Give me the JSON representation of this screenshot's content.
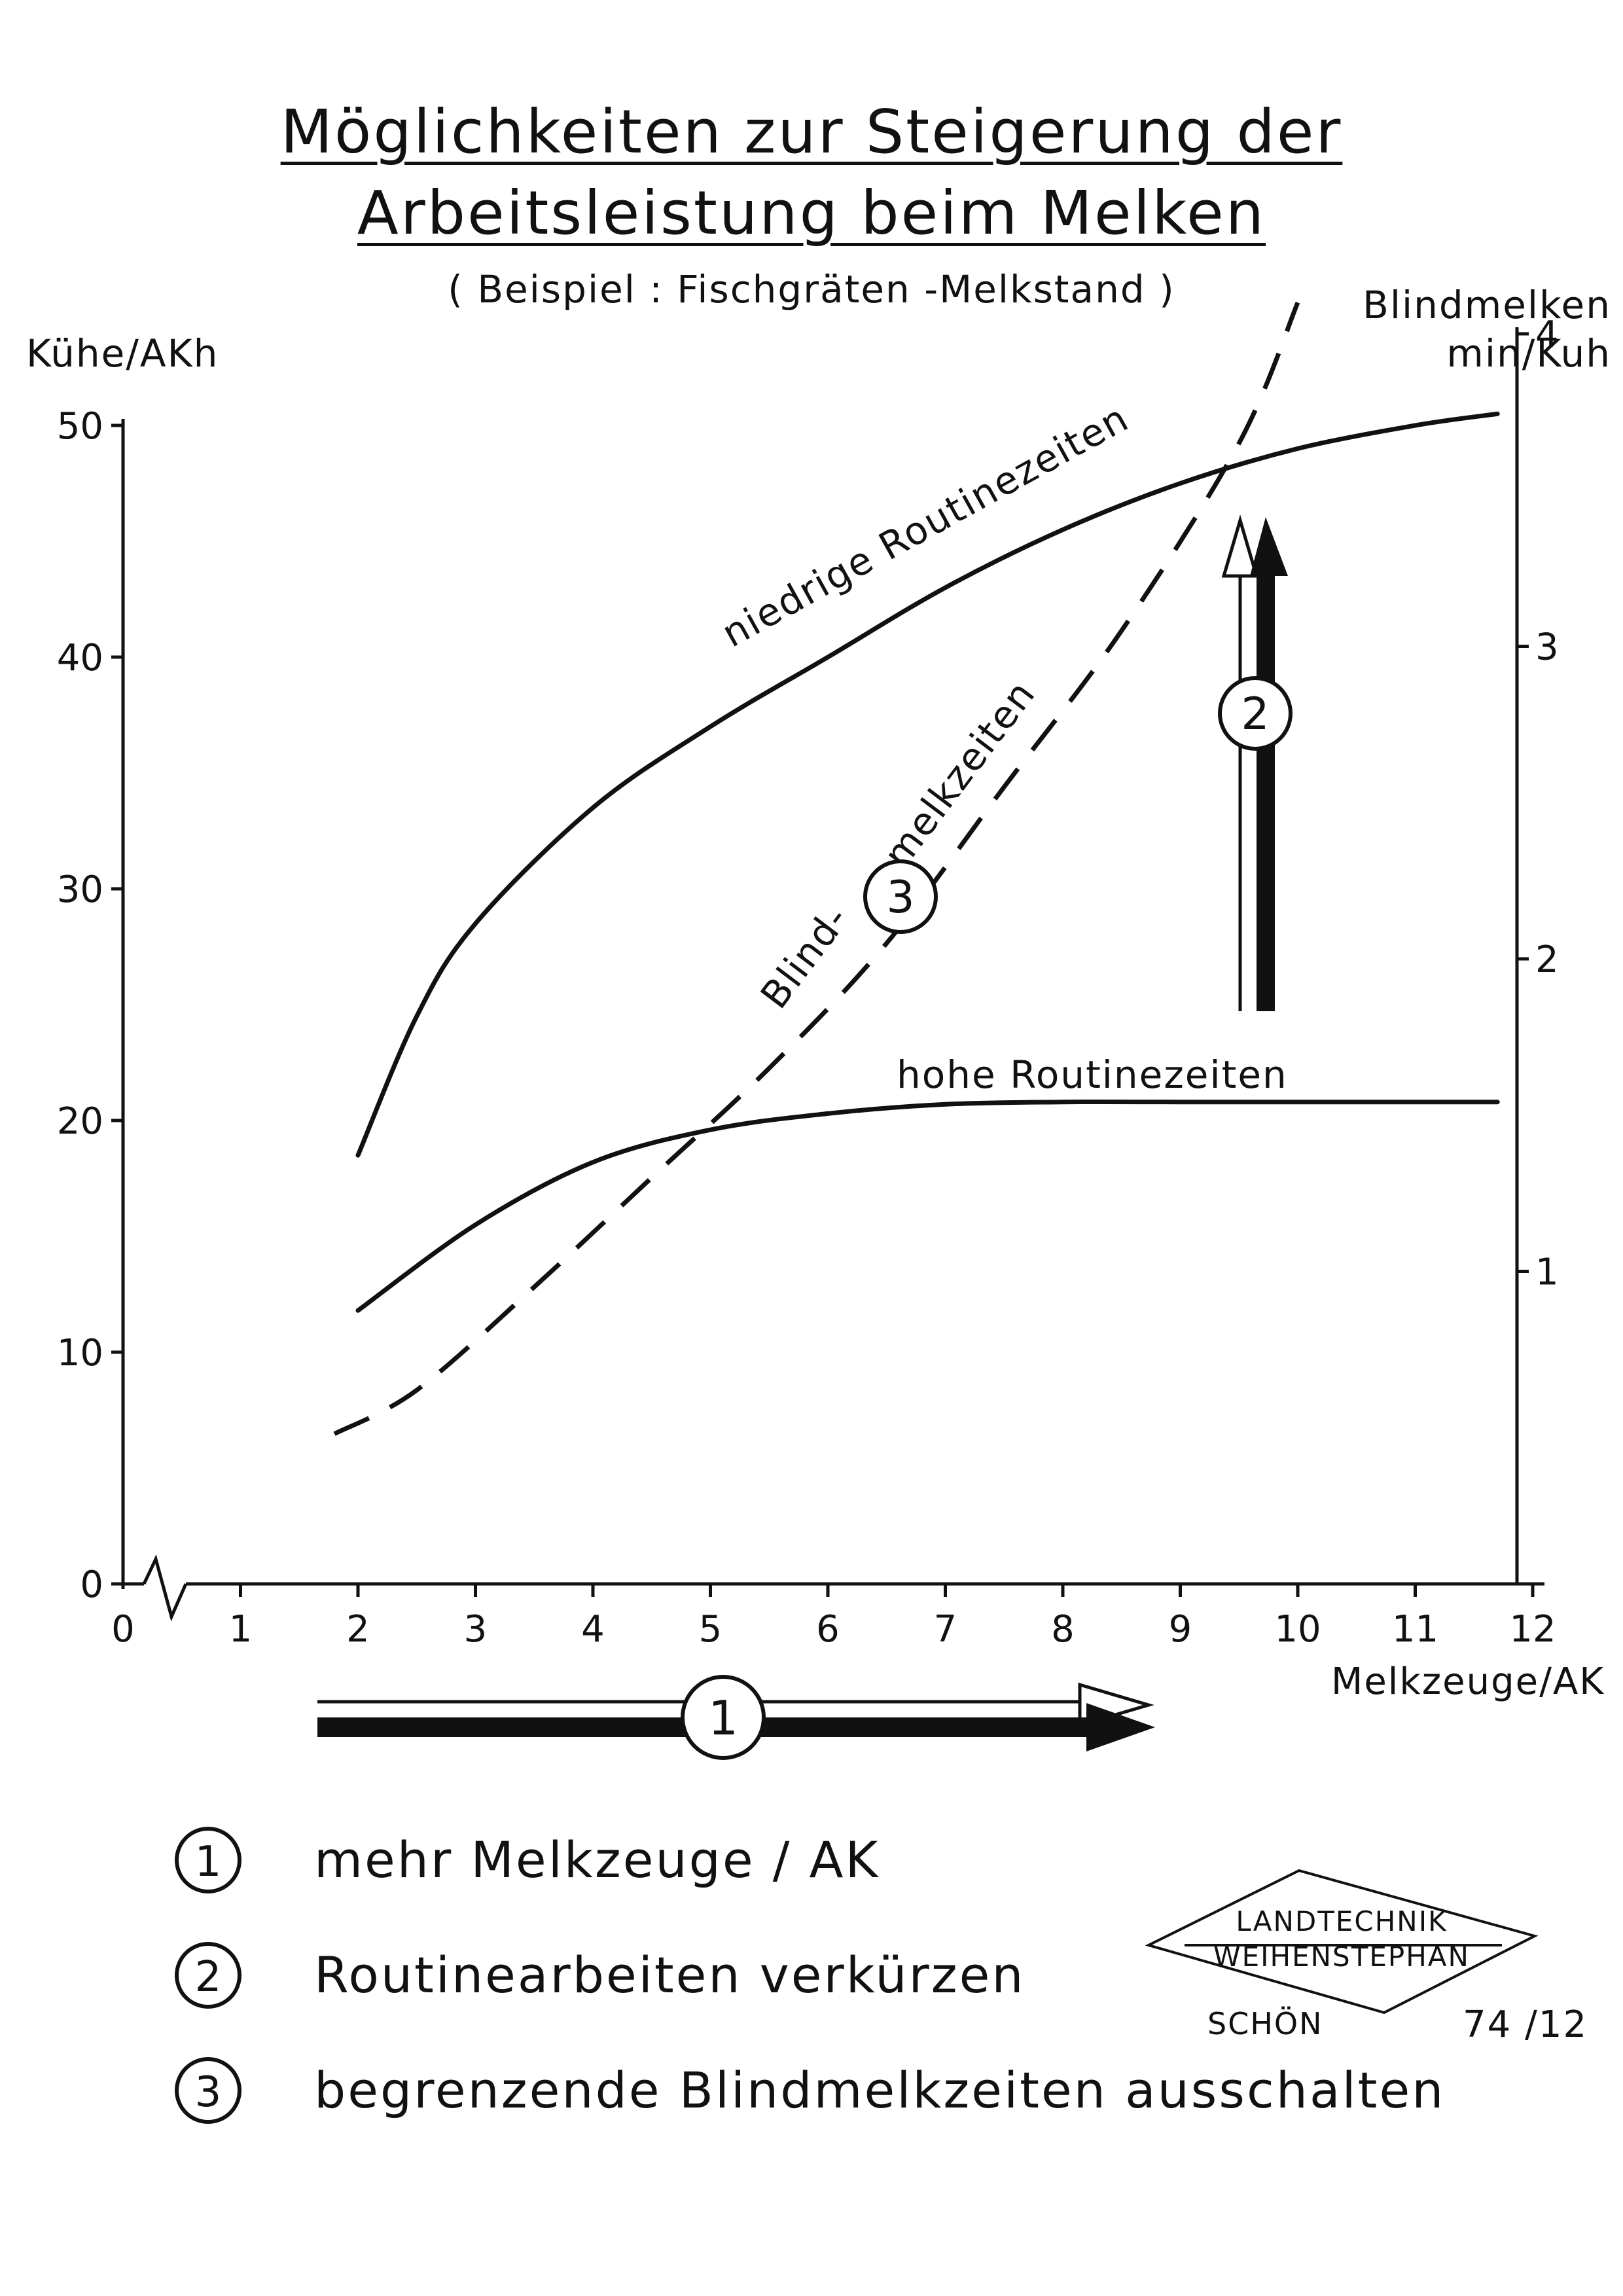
{
  "header": {
    "title_line1": "Möglichkeiten zur Steigerung der",
    "title_line2": "Arbeitsleistung beim Melken",
    "subtitle": "( Beispiel : Fischgräten -Melkstand )"
  },
  "chart_data": {
    "type": "line",
    "ylabel_left": "Kühe/AKh",
    "ylabel_right_line1": "Blindmelken",
    "ylabel_right_line2": "min/Kuh",
    "xlabel": "Melkzeuge/AK",
    "xlim": [
      0,
      12.5
    ],
    "ylim_left": [
      0,
      50
    ],
    "ylim_right": [
      0,
      4
    ],
    "x_ticks": [
      0,
      1,
      2,
      3,
      4,
      5,
      6,
      7,
      8,
      9,
      10,
      11,
      12
    ],
    "y_ticks_left": [
      0,
      10,
      20,
      30,
      40,
      50
    ],
    "y_ticks_right": [
      1,
      2,
      3,
      4
    ],
    "series": [
      {
        "name": "niedrige Routinezeiten",
        "axis": "left",
        "style": "solid",
        "x": [
          2,
          2.5,
          3,
          4,
          5,
          6,
          7,
          8,
          9,
          10,
          11,
          11.7
        ],
        "y": [
          18.5,
          24.5,
          28.5,
          33.5,
          37,
          40,
          43,
          45.5,
          47.5,
          49,
          50,
          50.5
        ]
      },
      {
        "name": "hohe Routinezeiten",
        "axis": "left",
        "style": "solid",
        "x": [
          2,
          3,
          4,
          5,
          6,
          7,
          8,
          9,
          10,
          11,
          11.7
        ],
        "y": [
          11.8,
          15.5,
          18.2,
          19.6,
          20.3,
          20.7,
          20.8,
          20.8,
          20.8,
          20.8,
          20.8
        ]
      },
      {
        "name": "Blindmelkzeiten",
        "axis": "right",
        "style": "dashed",
        "x": [
          1.8,
          2.5,
          3.5,
          4.5,
          5.5,
          6.5,
          7.5,
          8.5,
          9.5,
          10
        ],
        "y": [
          0.48,
          0.62,
          0.95,
          1.3,
          1.65,
          2.05,
          2.55,
          3.05,
          3.65,
          4.1
        ]
      }
    ],
    "annotations": {
      "curve_label_high": "hohe Routinezeiten",
      "curve_label_low": "niedrige Routinezeiten",
      "blind_label_part1": "Blind-",
      "blind_label_part2": "melkzeiten",
      "marker_1": "1",
      "marker_2": "2",
      "marker_3": "3"
    },
    "grid": false,
    "axis_break_x": true
  },
  "legend": {
    "items": [
      {
        "number": "1",
        "label": "mehr Melkzeuge / AK"
      },
      {
        "number": "2",
        "label": "Routinearbeiten verkürzen"
      },
      {
        "number": "3",
        "label": "begrenzende Blindmelkzeiten ausschalten"
      }
    ]
  },
  "stamp": {
    "line1": "LANDTECHNIK",
    "line2": "WEIHENSTEPHAN",
    "author": "SCHÖN",
    "code": "74 /12"
  }
}
